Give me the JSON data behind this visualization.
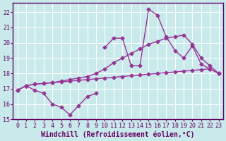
{
  "bg_color": "#c8eaea",
  "grid_color": "#ffffff",
  "line_color": "#993399",
  "line_width": 1.0,
  "marker": "D",
  "marker_size": 2.5,
  "xlabel": "Windchill (Refroidissement éolien,°C)",
  "xlabel_fontsize": 7,
  "xlim": [
    -0.5,
    23.5
  ],
  "ylim": [
    15,
    22.6
  ],
  "yticks": [
    15,
    16,
    17,
    18,
    19,
    20,
    21,
    22
  ],
  "xticks": [
    0,
    1,
    2,
    3,
    4,
    5,
    6,
    7,
    8,
    9,
    10,
    11,
    12,
    13,
    14,
    15,
    16,
    17,
    18,
    19,
    20,
    21,
    22,
    23
  ],
  "tick_fontsize": 6,
  "lineA_x": [
    0,
    1,
    2,
    3,
    4,
    5,
    6,
    7,
    8,
    9,
    10,
    11,
    12,
    13,
    14,
    15,
    16,
    17,
    18,
    19,
    20,
    21,
    22,
    23
  ],
  "lineA_y": [
    16.9,
    17.2,
    17.3,
    17.35,
    17.4,
    17.45,
    17.5,
    17.55,
    17.6,
    17.65,
    17.7,
    17.75,
    17.8,
    17.85,
    17.9,
    17.95,
    18.0,
    18.05,
    18.1,
    18.15,
    18.2,
    18.25,
    18.3,
    18.0
  ],
  "lineB_x": [
    0,
    1,
    2,
    3,
    4,
    5,
    6,
    7,
    8,
    9
  ],
  "lineB_y": [
    16.9,
    17.2,
    16.9,
    16.7,
    16.0,
    15.8,
    15.3,
    15.9,
    16.5,
    16.7
  ],
  "lineC_x": [
    0,
    1,
    2,
    3,
    4,
    5,
    6,
    7,
    8,
    9,
    10,
    11,
    12,
    13,
    14,
    15,
    16,
    17,
    18,
    19,
    20,
    21,
    22,
    23
  ],
  "lineC_y": [
    16.9,
    17.2,
    17.3,
    17.35,
    17.4,
    17.5,
    17.6,
    17.7,
    17.8,
    18.0,
    18.3,
    18.7,
    19.0,
    19.3,
    19.6,
    19.9,
    20.1,
    20.3,
    20.4,
    20.5,
    19.9,
    19.0,
    18.5,
    18.0
  ],
  "lineD_x": [
    10,
    11,
    12,
    13,
    14,
    15,
    16,
    17,
    18,
    19,
    20,
    21,
    22,
    23
  ],
  "lineD_y": [
    19.7,
    20.3,
    20.3,
    18.5,
    18.5,
    22.2,
    21.8,
    20.4,
    19.5,
    19.0,
    19.8,
    18.6,
    18.3,
    18.0
  ]
}
